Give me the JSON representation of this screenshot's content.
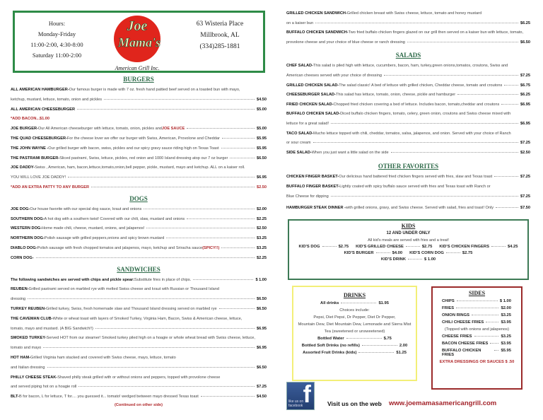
{
  "header": {
    "hours": [
      "Hours:",
      "Monday-Friday",
      "11:00-2:00, 4:30-8:00",
      "Saturday 11:00-2:00"
    ],
    "address": [
      "63 Wisteria Place",
      "Millbrook, AL",
      "(334)285-1881"
    ],
    "logo": {
      "line1": "Joe",
      "line2": "Mama's",
      "line3": "American Grill Inc."
    }
  },
  "colors": {
    "border_green": "#2e8b47",
    "heading_green": "#2f6b4a",
    "accent_red": "#b0282b",
    "drinks_yellow": "#f3ef78",
    "sides_red": "#9b2a2a"
  },
  "left": [
    {
      "type": "heading",
      "text": "BURGERS"
    },
    {
      "type": "item",
      "name": "ALL AMERICAN HAMBURGER-",
      "desc": " Our famous burger is made with 7 oz. fresh hand pattied beef served on a toasted bun with mayo,",
      "cont": "ketchup, mustard, lettuce, tomato, onion and pickles",
      "price": "$4.50"
    },
    {
      "type": "item",
      "name": "ALL AMERICAN CHEESEBURGER",
      "price": "$5.00"
    },
    {
      "type": "note",
      "name": "*ADD BACON...$1.00"
    },
    {
      "type": "item",
      "name": "JOE BURGER-",
      "desc": " Our All American cheeseburger with lettuce, tomato, onion, pickles and ",
      "hl": "JOE SAUCE",
      "price": "$5.00"
    },
    {
      "type": "item",
      "name": "THE QUAD CHEESEBURGER-",
      "desc": " For the cheese lover we offer our burger with Swiss, American, Provolone and Cheddar",
      "price": "$5.95"
    },
    {
      "type": "item",
      "name": "THE JOHN WAYNE -",
      "desc": " Our grilled burger with bacon, swiss, pickles and our spicy gravy sauce riding high on Texas Toast",
      "price": "$5.95"
    },
    {
      "type": "item",
      "name": "THE PASTRAMI BURGER-",
      "desc": " Sliced pastrami, Swiss, lettuce, pickles, red onion and 1000 Island dressing atop our 7 oz burger",
      "price": "$6.50"
    },
    {
      "type": "item",
      "name": "JOE DADDY-",
      "desc": "Swiss , American, ham, bacon,lettuce,tomato,onion,bell pepper, pickle, mustard, mayo and ketchup. ALL on a kaiser roll.",
      "cont": "YOU WILL LOVE JOE DADDY!",
      "price": "$6.95"
    },
    {
      "type": "note",
      "name": "*ADD AN EXTRA PATTY TO ANY BURGER",
      "price": "$2.50"
    },
    {
      "type": "heading",
      "text": "DOGS"
    },
    {
      "type": "item",
      "name": "JOE DOG-",
      "desc": " Our house favorite with our special dog sauce, kraut and onions",
      "price": "$2.00"
    },
    {
      "type": "item",
      "name": "SOUTHERN DOG-",
      "desc": " A hot dog with a southern twist! Covered with our chili, slaw, mustard and onions",
      "price": "$2.25"
    },
    {
      "type": "item",
      "name": "WESTERN DOG-",
      "desc": " Home made chili, cheese, mustard, onions, and jalapenos!",
      "price": "$2.50"
    },
    {
      "type": "item",
      "name": "NORTHERN DOG-",
      "desc": " Polish sausage with grilled peppers,onions and spicy brown mustard",
      "price": "$3.25"
    },
    {
      "type": "item",
      "name": "DIABLO DOG-",
      "desc": " Polish sausage with fresh chopped tomatos and jalapenos, mayo, ketchup and Sriracha sauce ",
      "hl": "(SPICY!!)",
      "price": "$3.25"
    },
    {
      "type": "item",
      "name": "CORN DOG-",
      "price": "$2.25"
    },
    {
      "type": "heading",
      "text": "SANDWICHES"
    },
    {
      "type": "item",
      "name": "The following sandwiches are served with chips and pickle spear:",
      "desc": " Substitute fries in place of chips.",
      "price": "$ 1.00"
    },
    {
      "type": "item",
      "name": "REUBEN-",
      "desc": " Grilled pastrami served on marbled rye with melted Swiss cheese and kraut with Russian or Thousand Island",
      "cont": "dressing",
      "price": "$6.50"
    },
    {
      "type": "item",
      "name": "TURKEY REUBEN-",
      "desc": " Grilled turkey, Swiss, fresh homemade slaw and Thousand Island dressing served on marbled rye",
      "price": "$6.50"
    },
    {
      "type": "item",
      "name": "THE CAVEMAN CLUB-",
      "desc": " White or wheat toast with layers of Smoked Turkey, Virginia Ham, Bacon, Swiss & American cheese, lettuce,",
      "cont": "tomato, mayo and mustard.  (A BIG Sandwich!!)",
      "price": "$6.95"
    },
    {
      "type": "item",
      "name": "SMOKED TURKEY-",
      "desc": " Served HOT from our steamer! Smoked turkey piled high on a hoagie or whole wheat bread with Swiss cheese, lettuce,",
      "cont": "tomato and mayo",
      "price": "$6.95"
    },
    {
      "type": "item",
      "name": "HOT HAM-",
      "desc": " Grilled Virginia ham stacked and covered with Swiss cheese, mayo, lettuce, tomato",
      "cont": " and Italian dressing",
      "price": "$6.50"
    },
    {
      "type": "item",
      "name": "PHILLY CHEESE STEAK-",
      "desc": " Shaved philly steak grilled with or without onions and peppers, topped with provolone cheese",
      "cont": "and served piping hot on a hoagie roll",
      "price": "$7.25"
    },
    {
      "type": "item",
      "name": "BLT-",
      "desc": " B for bacon, L for lettuce, T for.... you guessed it... tomato! wedged between mayo dressed Texas toast",
      "price": "$4.50"
    }
  ],
  "continued": "(Continued on other side)",
  "right": [
    {
      "type": "item",
      "name": "GRILLED CHICKEN SANDWICH-",
      "desc": " Grilled chicken breast with Swiss cheese, lettuce, tomato and honey mustard",
      "cont": "on a kaiser bun",
      "price": "$6.25"
    },
    {
      "type": "item",
      "name": "BUFFALO CHICKEN SANDWICH-",
      "desc": " Two fried buffalo chicken fingers glazed on our grill then served on a kaiser bun with lettuce, tomato,",
      "cont": "provolone cheese and your choice of blue cheese or ranch dressing",
      "price": "$6.50"
    },
    {
      "type": "heading",
      "text": "SALADS"
    },
    {
      "type": "item",
      "name": "CHEF SALAD-",
      "desc": " This salad is piled high with lettuce, cucumbers, bacon, ham, turkey,green onions,tomatos, croutons, Swiss and",
      "cont": "American cheeses served with your choice of dressing",
      "price": "$7.25"
    },
    {
      "type": "item",
      "name": "GRILLED CHICKEN SALAD-",
      "desc": " The salad classic! A bed of lettuce with grilled chicken, Cheddar cheese, tomato and croutons",
      "price": "$6.75"
    },
    {
      "type": "item",
      "name": "CHEESEBURGER SALAD-",
      "desc": " This salad has lettuce, tomato, onion, cheese, pickle and hamburger",
      "price": "$6.25"
    },
    {
      "type": "item",
      "name": "FRIED CHICKEN SALAD-",
      "desc": " Chopped fried chicken covering a bed of lettuce. Includes bacon, tomato,cheddar and croutons",
      "price": "$6.95"
    },
    {
      "type": "item",
      "name": "BUFFALO CHICKEN SALAD-",
      "desc": " Diced buffalo chicken fingers, tomato, celery, green onion, croutons and Swiss cheese mixed with",
      "cont": "lettuce for a great salad!",
      "price": "$6.95"
    },
    {
      "type": "item",
      "name": "TACO SALAD-",
      "desc": "Mucho lettuce topped with chili, cheddar, tomatos, salsa, jalapenos, and onion. Served with your choice of Ranch",
      "cont": " or sour cream",
      "price": "$7.25"
    },
    {
      "type": "item",
      "name": "SIDE SALAD-",
      "desc": " When you just want a little salad on the side",
      "price": "$2.50"
    },
    {
      "type": "heading",
      "text": "OTHER FAVORITES",
      "big": true
    },
    {
      "type": "item",
      "name": "CHICKEN FINGER BASKET-",
      "desc": " Our delicious hand battered fried chicken fingers served with fries, slaw and Texas toast",
      "price": "$7.25"
    },
    {
      "type": "item",
      "name": "BUFFALO FINGER BASKET-",
      "desc": " Lightly coated with spicy buffalo sauce served with fries and Texas toast with Ranch or",
      "cont": "Blue Cheese for dipping",
      "price": "$7.25"
    },
    {
      "type": "gap"
    },
    {
      "type": "item",
      "name": "HAMBURGER STEAK DINNER -",
      "desc": "with grilled onions, gravy, and Swiss cheese. Served with salad, fries and toast! Only",
      "price": "$7.50"
    }
  ],
  "kids": {
    "title": "KIDS",
    "subtitle": "12 AND UNDER ONLY",
    "note": "All kid's meals are served with fries and a treat!",
    "rows": [
      [
        {
          "name": "KID'S DOG",
          "price": "$2.75"
        },
        {
          "name": "KID'S GRILLED CHEESE",
          "price": "$2.75"
        },
        {
          "name": "KID'S CHICKEN FINGERS",
          "price": "$4.25"
        }
      ],
      [
        {
          "name": "KID'S BURGER",
          "price": "$4.00"
        },
        {
          "name": "KID'S CORN DOG",
          "price": "$2.75"
        }
      ],
      [
        {
          "name": "KID'S DRINK",
          "price": "$ 1.00"
        }
      ]
    ]
  },
  "drinks": {
    "title": "DRINKS",
    "all": {
      "name": "All drinks",
      "price": "$1.95"
    },
    "choices": [
      "Choices include:",
      "Pepsi, Diet Pepsi, Dr Pepper, Diet Dr Pepper,",
      "Mountain Dew, Diet Mountain Dew, Lemonade and Sierra Mist",
      "Tea (sweetened or unsweetened)"
    ],
    "others": [
      {
        "name": "Bottled Water",
        "price": "$.75"
      },
      {
        "name": "Bottled Soft Drinks (no refills)",
        "price": "2.00"
      },
      {
        "name": "Assorted Fruit Drinks (kids)",
        "price": "$1.25"
      }
    ]
  },
  "sides": {
    "title": "SIDES",
    "items": [
      {
        "name": "CHIPS",
        "price": "$ 1.00"
      },
      {
        "name": "FRIES",
        "price": "$2.00"
      },
      {
        "name": "ONION RINGS",
        "price": "$3.25"
      },
      {
        "name": "CHILI CHEESE FRIES",
        "price": "$3.95"
      }
    ],
    "topping_note": "(Topped with onions and jalapenos)",
    "items2": [
      {
        "name": "CHEESE FRIES",
        "price": "$3.25"
      },
      {
        "name": "BACON CHEESE FRIES",
        "price": "$3.95"
      },
      {
        "name": "BUFFALO CHICKEN FRIES",
        "price": "$5.95"
      }
    ],
    "extra": "EXTRA DRESSINGS OR SAUCES $ .50"
  },
  "footer": {
    "facebook_icon": "facebook-icon",
    "facebook_text": "like us on facebook",
    "visit": "Visit us on the web",
    "url": "www.joemamasamericangrill.com"
  }
}
